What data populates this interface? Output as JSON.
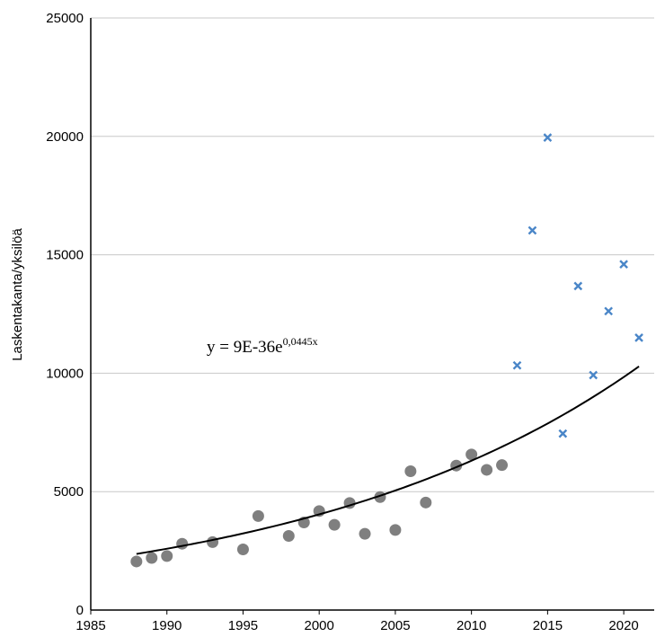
{
  "chart_data": {
    "type": "scatter",
    "title": "",
    "xlabel": "",
    "ylabel": "Laskentakanta/yksilöä",
    "xlim": [
      1985,
      2022
    ],
    "ylim": [
      0,
      25000
    ],
    "xticks": [
      1985,
      1990,
      1995,
      2000,
      2005,
      2010,
      2015,
      2020
    ],
    "yticks": [
      0,
      5000,
      10000,
      15000,
      20000,
      25000
    ],
    "grid": "horizontal",
    "series": [
      {
        "marker": "circle",
        "color": "#7f7f7f",
        "points": [
          [
            1988,
            2050
          ],
          [
            1989,
            2200
          ],
          [
            1990,
            2280
          ],
          [
            1991,
            2800
          ],
          [
            1993,
            2870
          ],
          [
            1995,
            2560
          ],
          [
            1996,
            3970
          ],
          [
            1998,
            3130
          ],
          [
            1999,
            3700
          ],
          [
            2000,
            4180
          ],
          [
            2001,
            3600
          ],
          [
            2002,
            4520
          ],
          [
            2003,
            3220
          ],
          [
            2004,
            4770
          ],
          [
            2005,
            3380
          ],
          [
            2006,
            5860
          ],
          [
            2007,
            4540
          ],
          [
            2009,
            6100
          ],
          [
            2010,
            6570
          ],
          [
            2011,
            5920
          ],
          [
            2012,
            6120
          ]
        ]
      },
      {
        "marker": "x",
        "color": "#4a86c8",
        "points": [
          [
            2013,
            10330
          ],
          [
            2014,
            16030
          ],
          [
            2015,
            19950
          ],
          [
            2016,
            7450
          ],
          [
            2017,
            13680
          ],
          [
            2018,
            9920
          ],
          [
            2019,
            12620
          ],
          [
            2020,
            14600
          ],
          [
            2021,
            11500
          ]
        ]
      }
    ],
    "trendline": {
      "type": "exponential",
      "a": 9e-36,
      "b": 0.0445,
      "x_range": [
        1988,
        2021
      ],
      "color": "#000000",
      "label_main": "y = 9E-36e",
      "label_exp": "0,0445x"
    }
  }
}
